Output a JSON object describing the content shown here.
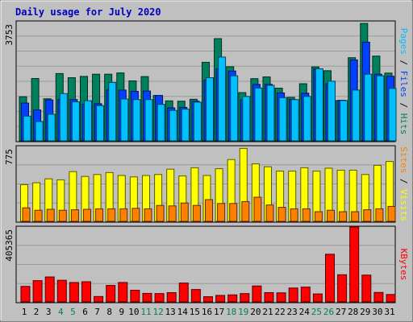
{
  "chart_data": [
    {
      "type": "bar",
      "title": "Daily usage for July 2020",
      "x": [
        1,
        2,
        3,
        4,
        5,
        6,
        7,
        8,
        9,
        10,
        11,
        12,
        13,
        14,
        15,
        16,
        17,
        18,
        19,
        20,
        21,
        22,
        23,
        24,
        25,
        26,
        27,
        28,
        29,
        30,
        31
      ],
      "weekend_days": [
        4,
        5,
        11,
        12,
        18,
        19,
        25,
        26
      ],
      "ymax_label": "3753",
      "ylim": [
        0,
        3753
      ],
      "side_label": [
        {
          "text": "Pages",
          "color": "#00c0ff"
        },
        {
          "text": " / ",
          "color": "#0a0a0a"
        },
        {
          "text": "Files",
          "color": "#0040ff"
        },
        {
          "text": " / ",
          "color": "#0a0a0a"
        },
        {
          "text": "Hits",
          "color": "#00805c"
        }
      ],
      "series": [
        {
          "name": "Hits",
          "color": "#00805c",
          "values": [
            1390,
            1965,
            1325,
            2120,
            1990,
            2030,
            2100,
            2100,
            2140,
            1890,
            2025,
            1430,
            1260,
            1250,
            1310,
            2475,
            3220,
            2335,
            1520,
            1960,
            2015,
            1660,
            1370,
            1800,
            2330,
            2210,
            1270,
            2620,
            3700,
            2670,
            2135
          ]
        },
        {
          "name": "Files",
          "color": "#0040ff",
          "values": [
            1190,
            975,
            1290,
            1300,
            1300,
            1150,
            1170,
            1600,
            1600,
            1560,
            1570,
            1430,
            1040,
            1055,
            1250,
            1910,
            2265,
            2200,
            1290,
            1780,
            1780,
            1510,
            1300,
            1500,
            2270,
            1800,
            1280,
            2550,
            3110,
            2100,
            2035
          ]
        },
        {
          "name": "Pages",
          "color": "#00c0ff",
          "values": [
            780,
            610,
            840,
            1490,
            1230,
            1265,
            1110,
            1840,
            1320,
            1300,
            1300,
            1150,
            960,
            1000,
            1220,
            1990,
            2640,
            2050,
            1400,
            1665,
            1750,
            1360,
            1300,
            1400,
            2270,
            1880,
            1270,
            1600,
            2100,
            2050,
            1650
          ]
        }
      ]
    },
    {
      "type": "bar",
      "ymax_label": "775",
      "ylim": [
        0,
        775
      ],
      "side_label": [
        {
          "text": "Sites",
          "color": "#ff8000"
        },
        {
          "text": " / ",
          "color": "#0a0a0a"
        },
        {
          "text": "Visits",
          "color": "#ffff00"
        }
      ],
      "series": [
        {
          "name": "Visits",
          "color": "#ffff00",
          "values": [
            380,
            400,
            440,
            430,
            515,
            465,
            485,
            505,
            475,
            460,
            475,
            485,
            540,
            470,
            555,
            475,
            545,
            640,
            755,
            595,
            565,
            520,
            520,
            555,
            520,
            550,
            530,
            530,
            485,
            580,
            620
          ]
        },
        {
          "name": "Sites",
          "color": "#ff8000",
          "values": [
            140,
            115,
            125,
            115,
            120,
            125,
            130,
            130,
            130,
            135,
            130,
            165,
            160,
            190,
            165,
            225,
            185,
            185,
            205,
            250,
            170,
            145,
            130,
            130,
            100,
            115,
            100,
            100,
            120,
            130,
            155
          ]
        }
      ]
    },
    {
      "type": "bar",
      "ymax_label": "405365",
      "ylim": [
        0,
        405365
      ],
      "side_label": [
        {
          "text": "KBytes",
          "color": "#ff0000"
        }
      ],
      "series": [
        {
          "name": "KBytes",
          "color": "#ff0000",
          "values": [
            84000,
            115000,
            135000,
            117000,
            105000,
            109000,
            29000,
            89000,
            105000,
            63000,
            46000,
            45000,
            50000,
            102000,
            67000,
            28000,
            35000,
            38000,
            45000,
            86000,
            50000,
            49000,
            75000,
            80000,
            43000,
            258000,
            147000,
            405365,
            145000,
            51000,
            40000
          ]
        }
      ]
    }
  ]
}
